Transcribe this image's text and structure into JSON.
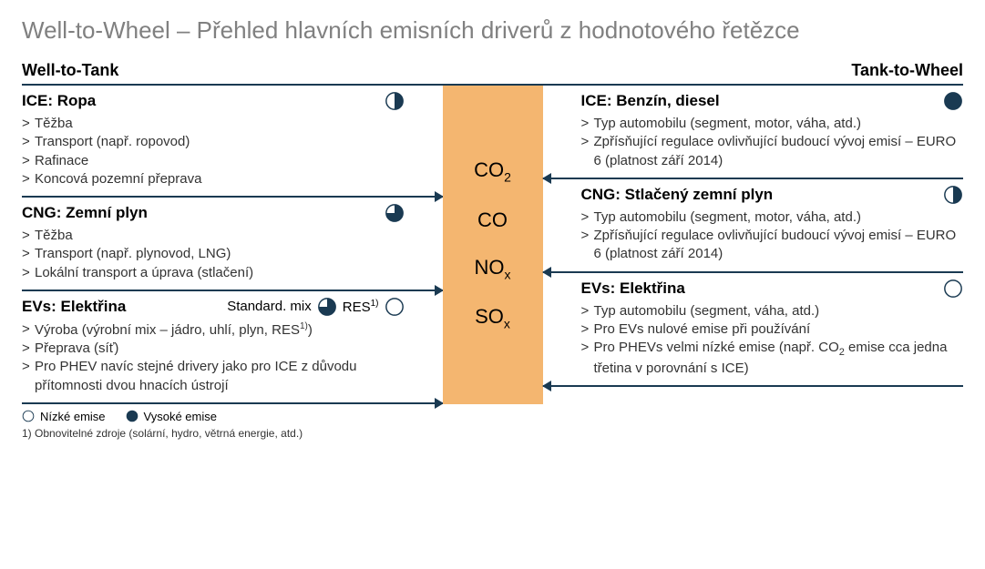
{
  "colors": {
    "navy": "#1a3a52",
    "orange": "#f4b670",
    "title_grey": "#808080",
    "text": "#333333",
    "line": "#1a3a52",
    "background": "#ffffff"
  },
  "title": "Well-to-Wheel – Přehled hlavních emisních driverů z hodnotového řetězce",
  "headers": {
    "left": "Well-to-Tank",
    "right": "Tank-to-Wheel"
  },
  "center_gases": [
    {
      "label": "CO",
      "sub": "2"
    },
    {
      "label": "CO",
      "sub": ""
    },
    {
      "label": "NO",
      "sub": "x"
    },
    {
      "label": "SO",
      "sub": "x"
    }
  ],
  "left_blocks": [
    {
      "title": "ICE: Ropa",
      "badges": [
        {
          "fill": 0.5
        }
      ],
      "bullets": [
        "Těžba",
        "Transport (např. ropovod)",
        "Rafinace",
        "Koncová pozemní přeprava"
      ]
    },
    {
      "title": "CNG: Zemní plyn",
      "badges": [
        {
          "fill": 0.75
        }
      ],
      "bullets": [
        "Těžba",
        "Transport (např. plynovod, LNG)",
        "Lokální transport a úprava (stlačení)"
      ]
    },
    {
      "title": "EVs: Elektřina",
      "extra_badges": [
        {
          "label": "Standard. mix",
          "fill": 0.75
        },
        {
          "label_html": "RES<span class='sup'>1)</span>",
          "fill": 0.0
        }
      ],
      "bullets_html": [
        "Výroba (výrobní mix – jádro, uhlí, plyn, RES<span class='sup'>1)</span>)",
        "Přeprava (síť)",
        "Pro PHEV navíc stejné drivery jako pro ICE z důvodu přítomnosti dvou hnacích ústrojí"
      ]
    }
  ],
  "right_blocks": [
    {
      "title": "ICE: Benzín, diesel",
      "badges": [
        {
          "fill": 1.0
        }
      ],
      "bullets": [
        "Typ automobilu (segment, motor, váha, atd.)",
        "Zpřísňující regulace ovlivňující budoucí vývoj emisí – EURO 6 (platnost září 2014)"
      ]
    },
    {
      "title": "CNG: Stlačený zemní plyn",
      "badges": [
        {
          "fill": 0.5
        }
      ],
      "bullets": [
        "Typ automobilu (segment, motor, váha, atd.)",
        "Zpřísňující regulace ovlivňující budoucí vývoj emisí – EURO 6 (platnost září 2014)"
      ]
    },
    {
      "title": "EVs: Elektřina",
      "badges": [
        {
          "fill": 0.0
        }
      ],
      "bullets_html": [
        "Typ automobilu (segment, váha, atd.)",
        "Pro EVs nulové emise při používání",
        "Pro PHEVs velmi nízké emise (např. CO<sub style='font-size:11px'>2</sub> emise cca jedna třetina v porovnání s ICE)"
      ]
    }
  ],
  "legend": {
    "low": {
      "fill": 0.0,
      "label": "Nízké emise"
    },
    "high": {
      "fill": 1.0,
      "label": "Vysoké emise"
    }
  },
  "footnote": "1) Obnovitelné zdroje (solární, hydro, větrná energie, atd.)",
  "pie_style": {
    "stroke": "#1a3a52",
    "fill": "#1a3a52",
    "stroke_width": 1.6
  }
}
